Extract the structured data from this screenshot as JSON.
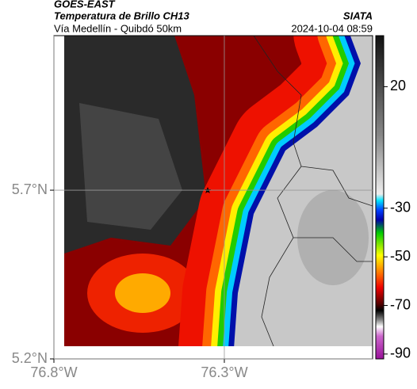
{
  "header": {
    "title": "GOES-EAST",
    "subtitle": "Temperatura de Brillo CH13",
    "route": "Vía Medellín - Quibdó 50km",
    "source": "SIATA",
    "timestamp": "2024-10-04 08:59"
  },
  "map": {
    "xlim": [
      -76.8,
      -75.865
    ],
    "ylim": [
      5.2,
      6.158
    ],
    "xticks": [
      {
        "value": -76.8,
        "label": "76.8°W"
      },
      {
        "value": -76.3,
        "label": "76.3°W"
      }
    ],
    "yticks": [
      {
        "value": 5.2,
        "label": "5.2°N"
      },
      {
        "value": 5.7,
        "label": "5.7°N"
      }
    ],
    "grid": true
  },
  "colorbar": {
    "lim": [
      -92,
      41
    ],
    "ticks": [
      20,
      -30,
      -50,
      -70,
      -90
    ]
  }
}
